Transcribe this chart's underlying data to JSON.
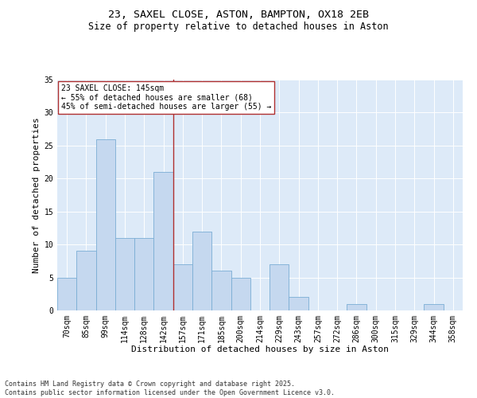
{
  "title_line1": "23, SAXEL CLOSE, ASTON, BAMPTON, OX18 2EB",
  "title_line2": "Size of property relative to detached houses in Aston",
  "xlabel": "Distribution of detached houses by size in Aston",
  "ylabel": "Number of detached properties",
  "categories": [
    "70sqm",
    "85sqm",
    "99sqm",
    "114sqm",
    "128sqm",
    "142sqm",
    "157sqm",
    "171sqm",
    "185sqm",
    "200sqm",
    "214sqm",
    "229sqm",
    "243sqm",
    "257sqm",
    "272sqm",
    "286sqm",
    "300sqm",
    "315sqm",
    "329sqm",
    "344sqm",
    "358sqm"
  ],
  "values": [
    5,
    9,
    26,
    11,
    11,
    21,
    7,
    12,
    6,
    5,
    0,
    7,
    2,
    0,
    0,
    1,
    0,
    0,
    0,
    1,
    0
  ],
  "bar_color": "#c5d8ef",
  "bar_edge_color": "#7aadd4",
  "vline_x": 5.5,
  "vline_color": "#b03030",
  "annotation_text": "23 SAXEL CLOSE: 145sqm\n← 55% of detached houses are smaller (68)\n45% of semi-detached houses are larger (55) →",
  "annotation_box_color": "white",
  "annotation_box_edge_color": "#b03030",
  "ylim": [
    0,
    35
  ],
  "yticks": [
    0,
    5,
    10,
    15,
    20,
    25,
    30,
    35
  ],
  "bg_color": "#ddeaf8",
  "footer_text": "Contains HM Land Registry data © Crown copyright and database right 2025.\nContains public sector information licensed under the Open Government Licence v3.0.",
  "title_fontsize": 9.5,
  "subtitle_fontsize": 8.5,
  "axis_fontsize": 8,
  "tick_fontsize": 7,
  "annotation_fontsize": 7,
  "footer_fontsize": 6
}
